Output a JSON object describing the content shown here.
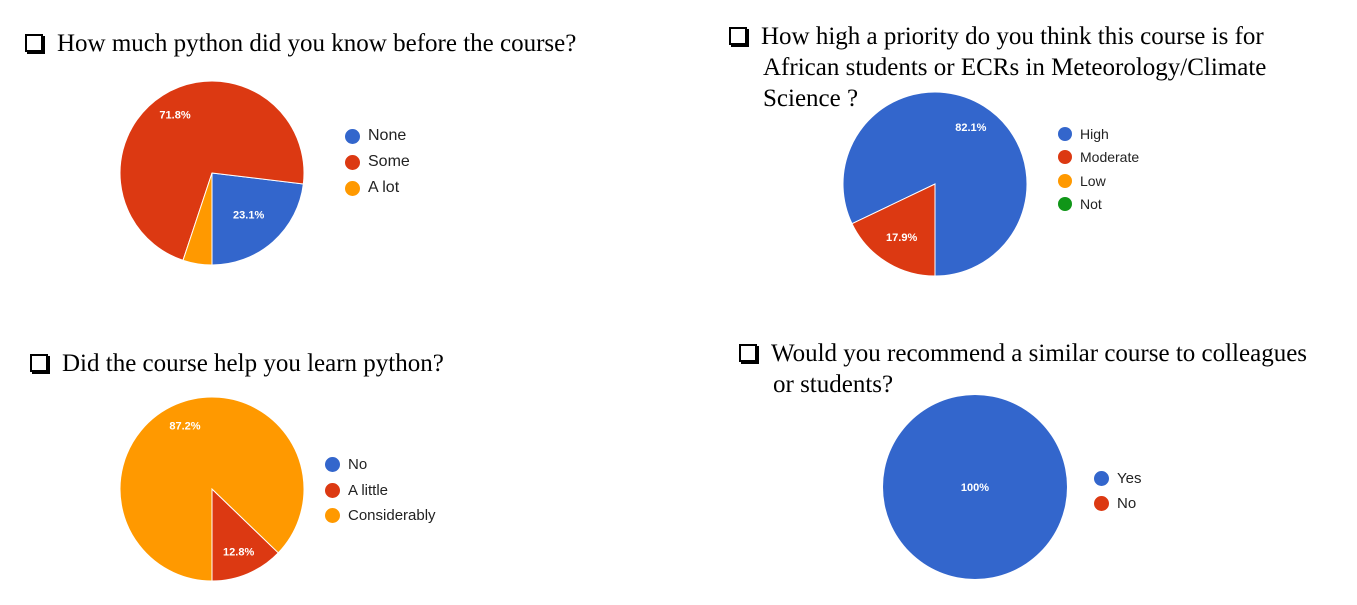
{
  "colors": {
    "blue": "#3366cc",
    "red": "#dc3912",
    "orange": "#ff9900",
    "green": "#109618"
  },
  "panels": [
    {
      "question_lines": [
        "How much python did you know before the course?"
      ],
      "chart_data": {
        "type": "pie",
        "labels": [
          "None",
          "Some",
          "A lot"
        ],
        "values": [
          23.1,
          71.8,
          5.1
        ],
        "slice_labels": [
          "23.1%",
          "71.8%",
          ""
        ],
        "colors": [
          "#3366cc",
          "#dc3912",
          "#ff9900"
        ],
        "legend_position": "right"
      }
    },
    {
      "question_lines": [
        "How high a priority do you think this course is for",
        "African students or ECRs in Meteorology/Climate",
        "Science ?"
      ],
      "chart_data": {
        "type": "pie",
        "labels": [
          "High",
          "Moderate",
          "Low",
          "Not"
        ],
        "values": [
          82.1,
          17.9,
          0,
          0
        ],
        "slice_labels": [
          "82.1%",
          "17.9%",
          "",
          ""
        ],
        "colors": [
          "#3366cc",
          "#dc3912",
          "#ff9900",
          "#109618"
        ],
        "legend_position": "right"
      }
    },
    {
      "question_lines": [
        "Did the course help you learn python?"
      ],
      "chart_data": {
        "type": "pie",
        "labels": [
          "No",
          "A little",
          "Considerably"
        ],
        "values": [
          0,
          12.8,
          87.2
        ],
        "slice_labels": [
          "",
          "12.8%",
          "87.2%"
        ],
        "colors": [
          "#3366cc",
          "#dc3912",
          "#ff9900"
        ],
        "legend_position": "right"
      }
    },
    {
      "question_lines": [
        "Would you recommend a similar course to colleagues",
        "or students?"
      ],
      "chart_data": {
        "type": "pie",
        "labels": [
          "Yes",
          "No"
        ],
        "values": [
          100,
          0
        ],
        "slice_labels": [
          "100%",
          ""
        ],
        "colors": [
          "#3366cc",
          "#dc3912"
        ],
        "legend_position": "right"
      }
    }
  ]
}
